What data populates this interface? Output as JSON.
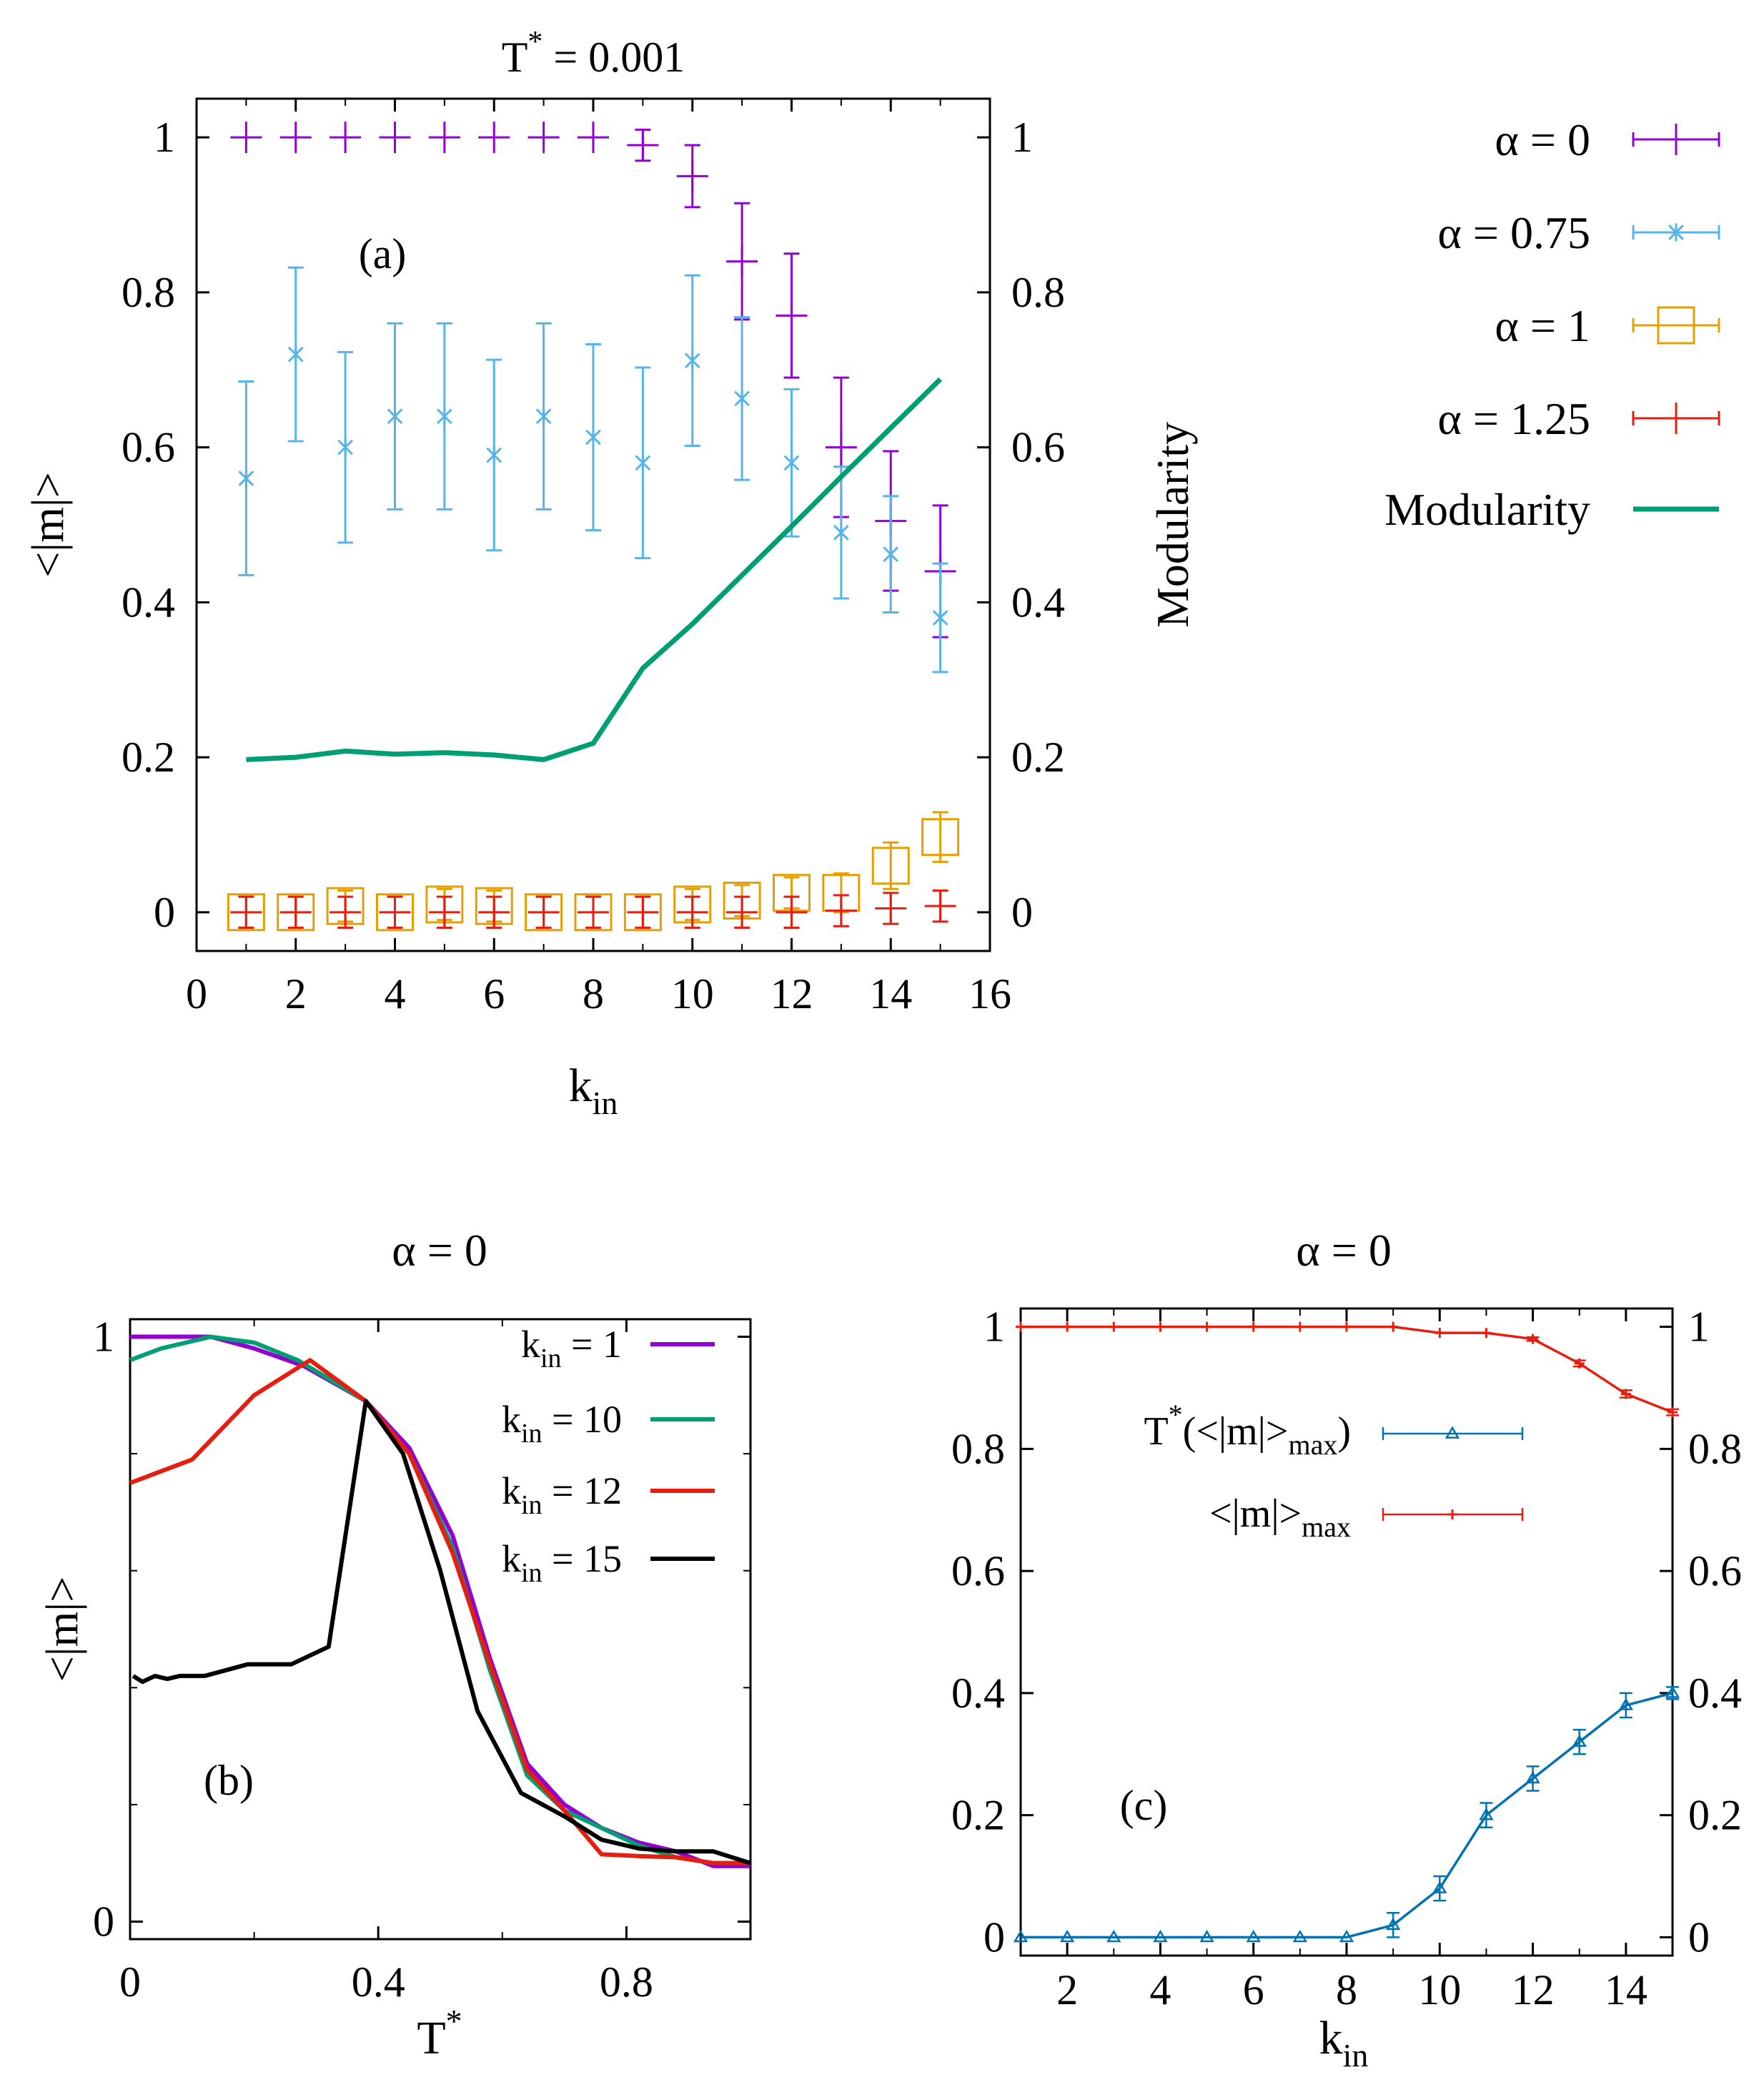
{
  "colors": {
    "purple": "#9400d3",
    "cyan": "#56b4e9",
    "orange": "#e69f00",
    "red": "#e51e10",
    "green": "#009e73",
    "black": "#000000",
    "blue": "#0072b2"
  },
  "chart_data": [
    {
      "id": "a",
      "type": "scatter",
      "title": "T* = 0.001",
      "title_main": "T",
      "title_sup": "*",
      "title_rest": " = 0.001",
      "panel_label": "(a)",
      "xlabel": "k",
      "xlabel_sub": "in",
      "ylabel": "<|m|>",
      "y2label": "Modularity",
      "xlim": [
        0,
        16
      ],
      "ylim": [
        -0.05,
        1.05
      ],
      "xticks": [
        "0",
        "2",
        "4",
        "6",
        "8",
        "10",
        "12",
        "14",
        "16"
      ],
      "yticks": [
        "0",
        "0.2",
        "0.4",
        "0.6",
        "0.8",
        "1"
      ],
      "y2ticks": [
        "0",
        "0.2",
        "0.4",
        "0.6",
        "0.8",
        "1"
      ],
      "legend_position": "outside-right",
      "series": [
        {
          "name": "α = 0",
          "marker": "plus",
          "color": "#9400d3",
          "x": [
            1,
            2,
            3,
            4,
            5,
            6,
            7,
            8,
            9,
            10,
            11,
            12,
            13,
            14,
            15
          ],
          "y": [
            1.0,
            1.0,
            1.0,
            1.0,
            1.0,
            1.0,
            1.0,
            1.0,
            0.99,
            0.95,
            0.84,
            0.77,
            0.6,
            0.505,
            0.44
          ],
          "err": [
            0,
            0,
            0,
            0,
            0,
            0,
            0,
            0,
            0.02,
            0.04,
            0.075,
            0.08,
            0.09,
            0.09,
            0.085
          ]
        },
        {
          "name": "α = 0.75",
          "marker": "star",
          "color": "#56b4e9",
          "x": [
            1,
            2,
            3,
            4,
            5,
            6,
            7,
            8,
            9,
            10,
            11,
            12,
            13,
            14,
            15
          ],
          "y": [
            0.56,
            0.72,
            0.6,
            0.64,
            0.64,
            0.59,
            0.64,
            0.613,
            0.58,
            0.712,
            0.663,
            0.58,
            0.49,
            0.462,
            0.38
          ],
          "err": [
            0.125,
            0.112,
            0.123,
            0.12,
            0.12,
            0.123,
            0.12,
            0.12,
            0.123,
            0.11,
            0.105,
            0.095,
            0.085,
            0.075,
            0.07
          ]
        },
        {
          "name": "α = 1",
          "marker": "square",
          "color": "#e69f00",
          "x": [
            1,
            2,
            3,
            4,
            5,
            6,
            7,
            8,
            9,
            10,
            11,
            12,
            13,
            14,
            15
          ],
          "y": [
            0.0,
            0.0,
            0.008,
            0.0,
            0.01,
            0.008,
            0.0,
            0.0,
            0.0,
            0.01,
            0.015,
            0.025,
            0.025,
            0.06,
            0.097
          ],
          "err": [
            0.02,
            0.02,
            0.02,
            0.02,
            0.02,
            0.02,
            0.02,
            0.02,
            0.02,
            0.02,
            0.02,
            0.02,
            0.025,
            0.03,
            0.032
          ]
        },
        {
          "name": "α = 1.25",
          "marker": "plus",
          "color": "#e51e10",
          "x": [
            1,
            2,
            3,
            4,
            5,
            6,
            7,
            8,
            9,
            10,
            11,
            12,
            13,
            14,
            15
          ],
          "y": [
            0.0,
            0.0,
            0.0,
            0.0,
            0.0,
            0.0,
            0.0,
            0.0,
            0.0,
            0.0,
            0.0,
            0.0,
            0.002,
            0.005,
            0.008
          ],
          "err": [
            0.02,
            0.02,
            0.02,
            0.02,
            0.02,
            0.02,
            0.02,
            0.02,
            0.02,
            0.02,
            0.02,
            0.02,
            0.02,
            0.02,
            0.02
          ]
        },
        {
          "name": "Modularity",
          "marker": "line",
          "color": "#009e73",
          "axis": "right",
          "x": [
            1,
            2,
            3,
            4,
            5,
            6,
            7,
            8,
            9,
            10,
            11,
            12,
            13,
            14,
            15
          ],
          "y": [
            0.197,
            0.2,
            0.208,
            0.204,
            0.206,
            0.203,
            0.197,
            0.218,
            0.315,
            0.372,
            0.435,
            0.498,
            0.562,
            0.625,
            0.688
          ]
        }
      ]
    },
    {
      "id": "b",
      "type": "line",
      "title": "α = 0",
      "panel_label": "(b)",
      "xlabel": "T",
      "xlabel_sup": "*",
      "ylabel": "<|m|>",
      "xlim": [
        0,
        1
      ],
      "ylim": [
        -0.03,
        1.03
      ],
      "xticks": [
        {
          "v": 0,
          "label": "0"
        },
        {
          "v": 0.4,
          "label": "0.4"
        },
        {
          "v": 0.8,
          "label": "0.8"
        }
      ],
      "yticks": [
        {
          "v": 0,
          "label": "0"
        },
        {
          "v": 1,
          "label": "1"
        }
      ],
      "legend_position": "top-right",
      "series": [
        {
          "name": "k = 1",
          "name_main": "k",
          "name_sub": "in",
          "name_rest": " = 1",
          "color": "#9400d3",
          "x": [
            0.0,
            0.05,
            0.13,
            0.2,
            0.28,
            0.38,
            0.45,
            0.52,
            0.58,
            0.64,
            0.7,
            0.76,
            0.82,
            0.88,
            0.94,
            1.0
          ],
          "y": [
            1.0,
            1.0,
            1.0,
            0.98,
            0.95,
            0.89,
            0.81,
            0.66,
            0.45,
            0.27,
            0.2,
            0.16,
            0.135,
            0.12,
            0.095,
            0.095
          ]
        },
        {
          "name": "k = 10",
          "name_main": "k",
          "name_sub": "in",
          "name_rest": " = 10",
          "color": "#009e73",
          "x": [
            0.0,
            0.05,
            0.13,
            0.2,
            0.27,
            0.38,
            0.45,
            0.52,
            0.58,
            0.64,
            0.7,
            0.76,
            0.82,
            0.88,
            0.94,
            1.0
          ],
          "y": [
            0.96,
            0.98,
            1.0,
            0.99,
            0.96,
            0.89,
            0.8,
            0.64,
            0.43,
            0.25,
            0.19,
            0.16,
            0.13,
            0.11,
            0.1,
            0.1
          ]
        },
        {
          "name": "k = 12",
          "name_main": "k",
          "name_sub": "in",
          "name_rest": " = 12",
          "color": "#e51e10",
          "x": [
            0.0,
            0.1,
            0.2,
            0.29,
            0.38,
            0.45,
            0.52,
            0.58,
            0.64,
            0.7,
            0.76,
            0.82,
            0.88,
            0.94,
            1.0
          ],
          "y": [
            0.75,
            0.79,
            0.9,
            0.96,
            0.89,
            0.8,
            0.63,
            0.44,
            0.26,
            0.19,
            0.115,
            0.112,
            0.11,
            0.1,
            0.1
          ]
        },
        {
          "name": "k = 15",
          "name_main": "k",
          "name_sub": "in",
          "name_rest": " = 15",
          "color": "#000000",
          "x": [
            0.005,
            0.02,
            0.04,
            0.06,
            0.08,
            0.12,
            0.19,
            0.26,
            0.32,
            0.38,
            0.44,
            0.5,
            0.56,
            0.63,
            0.7,
            0.76,
            0.82,
            0.88,
            0.94,
            1.0
          ],
          "y": [
            0.42,
            0.41,
            0.42,
            0.415,
            0.42,
            0.42,
            0.44,
            0.44,
            0.47,
            0.89,
            0.8,
            0.6,
            0.36,
            0.22,
            0.18,
            0.14,
            0.125,
            0.12,
            0.12,
            0.1
          ]
        }
      ]
    },
    {
      "id": "c",
      "type": "line",
      "title": "α = 0",
      "panel_label": "(c)",
      "xlabel": "k",
      "xlabel_sub": "in",
      "xlim": [
        1,
        15
      ],
      "ylim": [
        -0.03,
        1.03
      ],
      "xticks": [
        "2",
        "4",
        "6",
        "8",
        "10",
        "12",
        "14"
      ],
      "yticks": [
        "0",
        "0.2",
        "0.4",
        "0.6",
        "0.8",
        "1"
      ],
      "y2ticks": [
        "0",
        "0.2",
        "0.4",
        "0.6",
        "0.8",
        "1"
      ],
      "legend_position": "left-middle",
      "series": [
        {
          "name": "T*(<|m|>max)",
          "name_parts": [
            "T",
            "*",
            "(<|m|>",
            "max",
            ")"
          ],
          "marker": "triangle",
          "color": "#0072b2",
          "x": [
            1,
            2,
            3,
            4,
            5,
            6,
            7,
            8,
            9,
            10,
            11,
            12,
            13,
            14,
            15
          ],
          "y": [
            0.0,
            0.0,
            0.0,
            0.0,
            0.0,
            0.0,
            0.0,
            0.0,
            0.02,
            0.08,
            0.2,
            0.26,
            0.32,
            0.38,
            0.4
          ],
          "err": [
            0,
            0,
            0,
            0,
            0,
            0,
            0,
            0,
            0.02,
            0.02,
            0.02,
            0.02,
            0.02,
            0.02,
            0.01
          ]
        },
        {
          "name": "<|m|>max",
          "name_parts": [
            "<|m|>",
            "max"
          ],
          "marker": "plus",
          "color": "#e51e10",
          "x": [
            1,
            2,
            3,
            4,
            5,
            6,
            7,
            8,
            9,
            10,
            11,
            12,
            13,
            14,
            15
          ],
          "y": [
            1.0,
            1.0,
            1.0,
            1.0,
            1.0,
            1.0,
            1.0,
            1.0,
            1.0,
            0.99,
            0.99,
            0.98,
            0.94,
            0.89,
            0.86
          ],
          "err": [
            0,
            0,
            0,
            0,
            0,
            0,
            0,
            0,
            0,
            0,
            0,
            0.003,
            0.005,
            0.006,
            0.005
          ]
        }
      ]
    }
  ]
}
